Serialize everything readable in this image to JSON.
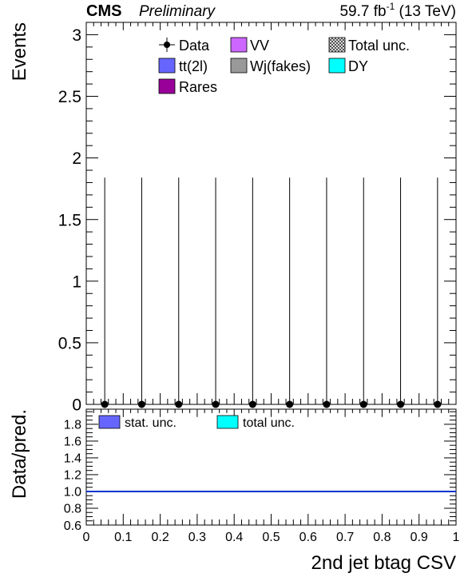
{
  "header": {
    "experiment": "CMS",
    "status": "Preliminary",
    "lumi_value": "59.7 fb",
    "lumi_exp": "-1",
    "energy": " (13 TeV)"
  },
  "chart_data": [
    {
      "panel": "main",
      "type": "scatter",
      "ylabel": "Events",
      "ylim": [
        0,
        3.1
      ],
      "yticks": [
        {
          "v": 0,
          "label": "0"
        },
        {
          "v": 0.5,
          "label": "0.5"
        },
        {
          "v": 1,
          "label": "1"
        },
        {
          "v": 1.5,
          "label": "1.5"
        },
        {
          "v": 2,
          "label": "2"
        },
        {
          "v": 2.5,
          "label": "2.5"
        },
        {
          "v": 3,
          "label": "3"
        }
      ],
      "series": [
        {
          "name": "Data",
          "x": [
            0.05,
            0.15,
            0.25,
            0.35,
            0.45,
            0.55,
            0.65,
            0.75,
            0.85,
            0.95
          ],
          "y": [
            0,
            0,
            0,
            0,
            0,
            0,
            0,
            0,
            0,
            0
          ],
          "err_up": [
            1.84,
            1.84,
            1.84,
            1.84,
            1.84,
            1.84,
            1.84,
            1.84,
            1.84,
            1.84
          ]
        }
      ],
      "legend": [
        {
          "label": "Data",
          "kind": "marker",
          "color": "#000000"
        },
        {
          "label": "VV",
          "kind": "box",
          "color": "#cc66ff"
        },
        {
          "label": "Total unc.",
          "kind": "hatch",
          "color": "#333333"
        },
        {
          "label": "tt(2l)",
          "kind": "box",
          "color": "#6666ff"
        },
        {
          "label": "Wj(fakes)",
          "kind": "box",
          "color": "#999999"
        },
        {
          "label": "DY",
          "kind": "box",
          "color": "#00ffff"
        },
        {
          "label": "Rares",
          "kind": "box",
          "color": "#990099"
        }
      ]
    },
    {
      "panel": "ratio",
      "type": "line",
      "ylabel": "Data/pred.",
      "ylim": [
        0.6,
        1.98
      ],
      "yticks": [
        {
          "v": 0.6,
          "label": "0.6"
        },
        {
          "v": 0.8,
          "label": "0.8"
        },
        {
          "v": 1.0,
          "label": "1.0"
        },
        {
          "v": 1.2,
          "label": "1.2"
        },
        {
          "v": 1.4,
          "label": "1.4"
        },
        {
          "v": 1.6,
          "label": "1.6"
        },
        {
          "v": 1.8,
          "label": "1.8"
        }
      ],
      "reference_line": {
        "y": 1.0,
        "color": "#0033cc"
      },
      "legend": [
        {
          "label": "stat. unc.",
          "kind": "box",
          "color": "#6666ff"
        },
        {
          "label": "total unc.",
          "kind": "box",
          "color": "#00ffff"
        }
      ]
    }
  ],
  "xaxis": {
    "label": "2nd jet btag CSV",
    "xlim": [
      0,
      1
    ],
    "ticks": [
      {
        "v": 0,
        "label": "0"
      },
      {
        "v": 0.1,
        "label": "0.1"
      },
      {
        "v": 0.2,
        "label": "0.2"
      },
      {
        "v": 0.3,
        "label": "0.3"
      },
      {
        "v": 0.4,
        "label": "0.4"
      },
      {
        "v": 0.5,
        "label": "0.5"
      },
      {
        "v": 0.6,
        "label": "0.6"
      },
      {
        "v": 0.7,
        "label": "0.7"
      },
      {
        "v": 0.8,
        "label": "0.8"
      },
      {
        "v": 0.9,
        "label": "0.9"
      },
      {
        "v": 1,
        "label": "1"
      }
    ]
  }
}
